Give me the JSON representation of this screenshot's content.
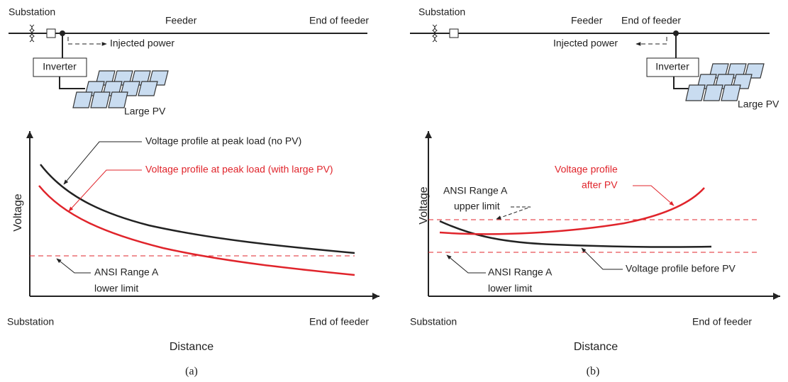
{
  "panels": [
    {
      "substation": "Substation",
      "feeder": "Feeder",
      "end_of_feeder": "End of feeder",
      "injected_power": "Injected power",
      "inverter": "Inverter",
      "pv": "Large PV",
      "y_axis": "Voltage",
      "x_start": "Substation",
      "x_end": "End of feeder",
      "x_axis": "Distance",
      "annotations": [
        [
          "Voltage profile at peak load (no PV)"
        ],
        [
          "Voltage profile at peak load (with large PV)"
        ],
        [
          "ANSI Range A",
          "lower limit"
        ]
      ],
      "caption": "(a)"
    },
    {
      "substation": "Substation",
      "feeder": "Feeder",
      "end_of_feeder": "End of feeder",
      "injected_power": "Injected power",
      "inverter": "Inverter",
      "pv": "Large PV",
      "y_axis": "Voltage",
      "x_start": "Substation",
      "x_end": "End of feeder",
      "x_axis": "Distance",
      "annotations": [
        [
          "Voltage profile",
          "after PV"
        ],
        [
          "ANSI Range A",
          "upper limit"
        ],
        [
          "ANSI Range A",
          "lower limit"
        ],
        [
          "Voltage profile before PV"
        ]
      ],
      "caption": "(b)"
    }
  ]
}
